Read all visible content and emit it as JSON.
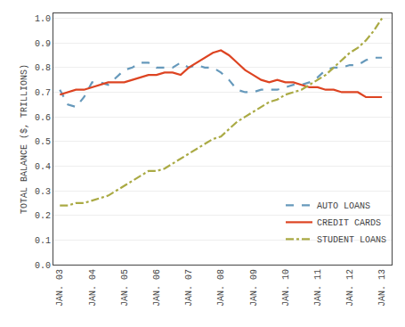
{
  "chart_data": {
    "type": "line",
    "ylabel": "TOTAL BALANCE ($, TRILLIONS)",
    "x": [
      0,
      0.25,
      0.5,
      0.75,
      1.0,
      1.25,
      1.5,
      1.75,
      2.0,
      2.25,
      2.5,
      2.75,
      3.0,
      3.25,
      3.5,
      3.75,
      4.0,
      4.25,
      4.5,
      4.75,
      5.0,
      5.25,
      5.5,
      5.75,
      6.0,
      6.25,
      6.5,
      6.75,
      7.0,
      7.25,
      7.5,
      7.75,
      8.0,
      8.25,
      8.5,
      8.75,
      9.0,
      9.25,
      9.5,
      9.75,
      10.0
    ],
    "series": [
      {
        "name": "AUTO LOANS",
        "color": "#6699bb",
        "line_style": "dashed",
        "values": [
          0.71,
          0.65,
          0.64,
          0.68,
          0.74,
          0.74,
          0.73,
          0.76,
          0.79,
          0.8,
          0.82,
          0.82,
          0.8,
          0.8,
          0.8,
          0.82,
          0.8,
          0.81,
          0.8,
          0.8,
          0.78,
          0.75,
          0.71,
          0.7,
          0.7,
          0.71,
          0.71,
          0.71,
          0.72,
          0.73,
          0.73,
          0.74,
          0.76,
          0.79,
          0.8,
          0.8,
          0.81,
          0.81,
          0.83,
          0.84,
          0.84
        ]
      },
      {
        "name": "CREDIT CARDS",
        "color": "#dd4422",
        "line_style": "solid",
        "values": [
          0.69,
          0.7,
          0.71,
          0.71,
          0.72,
          0.73,
          0.74,
          0.74,
          0.74,
          0.75,
          0.76,
          0.77,
          0.77,
          0.78,
          0.78,
          0.77,
          0.8,
          0.82,
          0.84,
          0.86,
          0.87,
          0.85,
          0.82,
          0.79,
          0.77,
          0.75,
          0.74,
          0.75,
          0.74,
          0.74,
          0.73,
          0.72,
          0.72,
          0.71,
          0.71,
          0.7,
          0.7,
          0.7,
          0.68,
          0.68,
          0.68
        ]
      },
      {
        "name": "STUDENT LOANS",
        "color": "#aaaa44",
        "line_style": "dashdot",
        "values": [
          0.24,
          0.24,
          0.25,
          0.25,
          0.26,
          0.27,
          0.28,
          0.3,
          0.32,
          0.34,
          0.36,
          0.38,
          0.38,
          0.39,
          0.41,
          0.43,
          0.45,
          0.47,
          0.49,
          0.51,
          0.52,
          0.55,
          0.58,
          0.6,
          0.62,
          0.64,
          0.66,
          0.67,
          0.69,
          0.7,
          0.71,
          0.73,
          0.75,
          0.77,
          0.8,
          0.83,
          0.86,
          0.88,
          0.91,
          0.95,
          1.0
        ]
      }
    ],
    "xlim": [
      -0.2,
      10.3
    ],
    "xticks": [
      {
        "value": 0,
        "label": "JAN. 03"
      },
      {
        "value": 1,
        "label": "JAN. 04"
      },
      {
        "value": 2,
        "label": "JAN. 05"
      },
      {
        "value": 3,
        "label": "JAN. 06"
      },
      {
        "value": 4,
        "label": "JAN. 07"
      },
      {
        "value": 5,
        "label": "JAN. 08"
      },
      {
        "value": 6,
        "label": "JAN. 09"
      },
      {
        "value": 7,
        "label": "JAN. 10"
      },
      {
        "value": 8,
        "label": "JAN. 11"
      },
      {
        "value": 9,
        "label": "JAN. 12"
      },
      {
        "value": 10,
        "label": "JAN. 13"
      }
    ],
    "ylim": [
      0.0,
      1.02
    ],
    "yticks": [
      {
        "value": 0.0,
        "label": "0.0"
      },
      {
        "value": 0.1,
        "label": "0.1"
      },
      {
        "value": 0.2,
        "label": "0.2"
      },
      {
        "value": 0.3,
        "label": "0.3"
      },
      {
        "value": 0.4,
        "label": "0.4"
      },
      {
        "value": 0.5,
        "label": "0.5"
      },
      {
        "value": 0.6,
        "label": "0.6"
      },
      {
        "value": 0.7,
        "label": "0.7"
      },
      {
        "value": 0.8,
        "label": "0.8"
      },
      {
        "value": 0.9,
        "label": "0.9"
      },
      {
        "value": 1.0,
        "label": "1.0"
      }
    ],
    "grid": "y",
    "legend": "lower right"
  }
}
